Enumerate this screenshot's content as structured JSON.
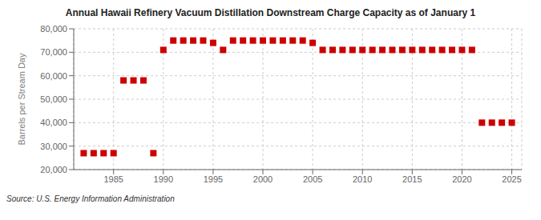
{
  "chart_data": {
    "type": "scatter",
    "title": "Annual Hawaii Refinery Vacuum Distillation Downstream Charge Capacity as of January 1",
    "y_label": "Barrels per Stream Day",
    "annotations": [
      "Source: U.S. Energy Information Administration"
    ],
    "x": [
      1982,
      1983,
      1984,
      1985,
      1986,
      1987,
      1988,
      1989,
      1990,
      1991,
      1992,
      1993,
      1994,
      1995,
      1996,
      1997,
      1998,
      1999,
      2000,
      2001,
      2002,
      2003,
      2004,
      2005,
      2006,
      2007,
      2008,
      2009,
      2010,
      2011,
      2012,
      2013,
      2014,
      2015,
      2016,
      2017,
      2018,
      2019,
      2020,
      2021,
      2022,
      2023,
      2024,
      2025
    ],
    "values": [
      27000,
      27000,
      27000,
      27000,
      58000,
      58000,
      58000,
      27000,
      71000,
      75000,
      75000,
      75000,
      75000,
      74000,
      71000,
      75000,
      75000,
      75000,
      75000,
      75000,
      75000,
      75000,
      75000,
      74000,
      71000,
      71000,
      71000,
      71000,
      71000,
      71000,
      71000,
      71000,
      71000,
      71000,
      71000,
      71000,
      71000,
      71000,
      71000,
      71000,
      40000,
      40000,
      40000,
      40000
    ],
    "color": "#cc0000",
    "marker": "square",
    "xlim": [
      1981,
      2026
    ],
    "xticks": [
      1985,
      1990,
      1995,
      2000,
      2005,
      2010,
      2015,
      2020,
      2025
    ],
    "ylim": [
      20000,
      80000
    ],
    "yticks": [
      {
        "value": 20000,
        "label": "20,000"
      },
      {
        "value": 30000,
        "label": "30,000"
      },
      {
        "value": 40000,
        "label": "40,000"
      },
      {
        "value": 50000,
        "label": "50,000"
      },
      {
        "value": 60000,
        "label": "60,000"
      },
      {
        "value": 70000,
        "label": "70,000"
      },
      {
        "value": 80000,
        "label": "80,000"
      }
    ],
    "grid": true
  }
}
